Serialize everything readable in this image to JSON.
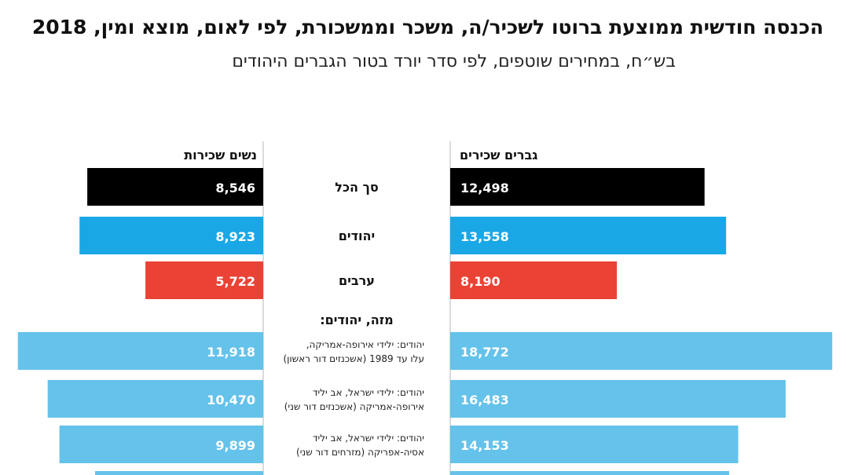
{
  "header": {
    "title": "הכנסה חודשית ממוצעת ברוטו לשכיר/ה, משכר וממשכורת, לפי לאום, מוצא ומין, 2018",
    "subtitle": "בש״ח, במחירים שוטפים, לפי סדר יורד בטור הגברים היהודים"
  },
  "colors": {
    "total": "#000000",
    "jews": "#1aa7e6",
    "arabs": "#ea4335",
    "origin": "#65c2ea",
    "divider": "#cfcfcf"
  },
  "chart_data": {
    "type": "bar",
    "orientation": "horizontal-butterfly",
    "series": [
      {
        "name": "גברים שכירים",
        "side": "right"
      },
      {
        "name": "נשים שכירות",
        "side": "left"
      }
    ],
    "section_label": "מזה, יהודים:",
    "rows": [
      {
        "label": [
          "סך הכל"
        ],
        "men": 12498,
        "women": 8546,
        "men_label": "12,498",
        "women_label": "8,546",
        "color": "total",
        "bold": true
      },
      {
        "label": [
          "יהודים"
        ],
        "men": 13558,
        "women": 8923,
        "men_label": "13,558",
        "women_label": "8,923",
        "color": "jews",
        "bold": true
      },
      {
        "label": [
          "ערבים"
        ],
        "men": 8190,
        "women": 5722,
        "men_label": "8,190",
        "women_label": "5,722",
        "color": "arabs",
        "bold": true
      },
      {
        "label": [
          "יהודים: ילידי אירופה-אמריקה,",
          "עלו עד 1989 (אשכנזים דור ראשון)"
        ],
        "men": 18772,
        "women": 11918,
        "men_label": "18,772",
        "women_label": "11,918",
        "color": "origin",
        "bold": false
      },
      {
        "label": [
          "יהודים: ילידי ישראל, אב יליד",
          "אירופה-אמריקה (אשכנזים דור שני)"
        ],
        "men": 16483,
        "women": 10470,
        "men_label": "16,483",
        "women_label": "10,470",
        "color": "origin",
        "bold": false
      },
      {
        "label": [
          "יהודים: ילידי ישראל, אב יליד",
          "אסיה-אפריקה (מזרחים דור שני)"
        ],
        "men": 14153,
        "women": 9899,
        "men_label": "14,153",
        "women_label": "9,899",
        "color": "origin",
        "bold": false
      }
    ]
  }
}
